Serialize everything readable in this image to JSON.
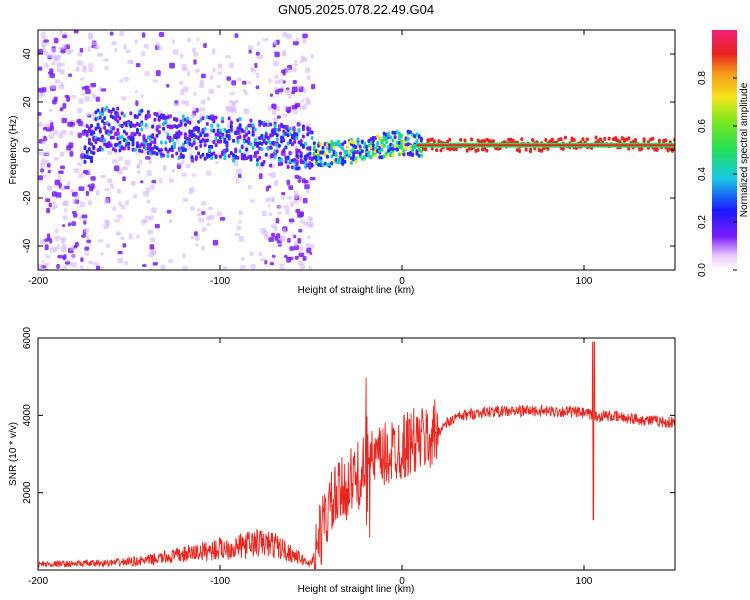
{
  "title": "GN05.2025.078.22.49.G04",
  "colors": {
    "snr_line": "#e8251e",
    "spectrum_low": "#7a1cff",
    "spectrum_mid": "#19c8e6",
    "spectrum_high": "#e8251e",
    "axis": "#000000"
  },
  "chart_data": [
    {
      "type": "heatmap",
      "xlabel": "Height of straight line (km)",
      "ylabel": "Frequency (Hz)",
      "xlim": [
        -200,
        150
      ],
      "ylim": [
        -50,
        50
      ],
      "x_ticks": [
        -200,
        -100,
        0,
        100
      ],
      "x_tick_labels": [
        "-200",
        "-100",
        "0",
        "100"
      ],
      "y_ticks": [
        -40,
        -20,
        0,
        20,
        40
      ],
      "y_tick_labels": [
        "-40",
        "-20",
        "0",
        "20",
        "40"
      ],
      "colorbar": {
        "label": "Normalized spectral amplitude",
        "range": [
          0,
          1
        ],
        "ticks": [
          0.0,
          0.2,
          0.4,
          0.6,
          0.8
        ],
        "tick_labels": [
          "0.0",
          "0.2",
          "0.4",
          "0.6",
          "0.8"
        ]
      },
      "ridge": [
        {
          "x": -170,
          "f": 9
        },
        {
          "x": -150,
          "f": 8
        },
        {
          "x": -130,
          "f": 6
        },
        {
          "x": -110,
          "f": 5
        },
        {
          "x": -90,
          "f": 4
        },
        {
          "x": -70,
          "f": 2
        },
        {
          "x": -55,
          "f": 1
        },
        {
          "x": -45,
          "f": -2
        },
        {
          "x": -30,
          "f": -1
        },
        {
          "x": -20,
          "f": 1
        },
        {
          "x": -10,
          "f": 2
        },
        {
          "x": 0,
          "f": 3
        },
        {
          "x": 10,
          "f": 2
        },
        {
          "x": 50,
          "f": 2
        },
        {
          "x": 80,
          "f": 2
        },
        {
          "x": 90,
          "f": 3
        },
        {
          "x": 150,
          "f": 2
        }
      ]
    },
    {
      "type": "line",
      "xlabel": "Height of straight line (km)",
      "ylabel": "SNR (10 * v/v)",
      "xlim": [
        -200,
        150
      ],
      "ylim": [
        0,
        6000
      ],
      "x_ticks": [
        -200,
        -100,
        0,
        100
      ],
      "x_tick_labels": [
        "-200",
        "-100",
        "0",
        "100"
      ],
      "y_ticks": [
        2000,
        4000,
        6000
      ],
      "y_tick_labels": [
        "2000",
        "4000",
        "6000"
      ],
      "series": [
        {
          "x": [
            -200,
            -180,
            -160,
            -140,
            -120,
            -100,
            -90,
            -80,
            -70,
            -60,
            -50,
            -45,
            -40,
            -35,
            -30,
            -25,
            -20,
            -18,
            -15,
            -10,
            -5,
            0,
            5,
            10,
            15,
            20,
            25,
            30,
            40,
            50,
            60,
            70,
            80,
            90,
            95,
            100,
            104,
            106,
            108,
            110,
            120,
            130,
            140,
            150
          ],
          "values": [
            150,
            160,
            180,
            250,
            400,
            550,
            600,
            700,
            650,
            400,
            150,
            900,
            1600,
            1900,
            2200,
            2400,
            2600,
            2700,
            2800,
            2900,
            3100,
            3200,
            3300,
            3350,
            3400,
            3600,
            3800,
            3950,
            4050,
            4100,
            4100,
            4120,
            4100,
            4100,
            4080,
            4050,
            4000,
            3950,
            3950,
            4000,
            3950,
            3900,
            3850,
            3800
          ]
        }
      ]
    }
  ]
}
